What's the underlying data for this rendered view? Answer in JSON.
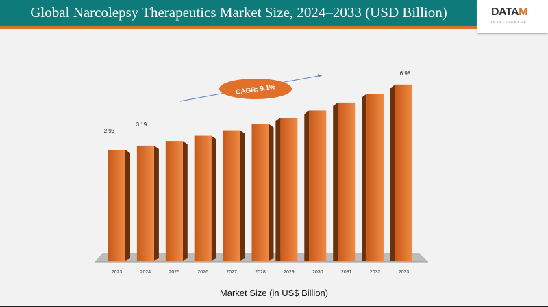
{
  "header": {
    "title": "Global Narcolepsy Therapeutics Market Size, 2024–2033 (USD Billion)",
    "logo": "DATAM INTELLIGENCE"
  },
  "chart_data": {
    "type": "bar",
    "title": "Global Narcolepsy Therapeutics Market Size, 2024–2033 (USD Billion)",
    "xlabel": "Market Size (in US$ Billion)",
    "categories": [
      "2023",
      "2024",
      "2025",
      "2026",
      "2027",
      "2028",
      "2029",
      "2030",
      "2031",
      "2032",
      "2033"
    ],
    "values": [
      2.93,
      3.19,
      3.48,
      3.8,
      4.14,
      4.52,
      4.93,
      5.38,
      5.87,
      6.4,
      6.98
    ],
    "data_labels": {
      "0": "2.93",
      "1": "3.19",
      "10": "6.98"
    },
    "annotation": "CAGR: 9.1%",
    "colors": {
      "bar": "#e0702a",
      "bar_side": "#6b300c",
      "header": "#0e7a7a",
      "accent": "#d9742c"
    },
    "grid": false
  }
}
